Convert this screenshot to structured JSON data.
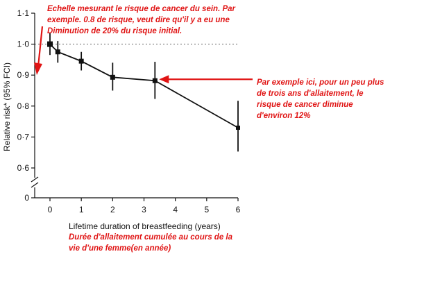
{
  "chart_data": {
    "type": "line",
    "title": "",
    "xlabel": "Lifetime duration of breastfeeding (years)",
    "ylabel": "Relative risk* (95% FCI)",
    "xlim": [
      0,
      6
    ],
    "ylim_break": {
      "lower": 0,
      "upper_range": [
        0.6,
        1.1
      ]
    },
    "x_ticks": [
      {
        "value": 0,
        "label": "0"
      },
      {
        "value": 1,
        "label": "1"
      },
      {
        "value": 2,
        "label": "2"
      },
      {
        "value": 3,
        "label": "3"
      },
      {
        "value": 4,
        "label": "4"
      },
      {
        "value": 5,
        "label": "5"
      },
      {
        "value": 6,
        "label": "6"
      }
    ],
    "y_ticks": [
      {
        "value": 0,
        "label": "0"
      },
      {
        "value": 0.6,
        "label": "0·6"
      },
      {
        "value": 0.7,
        "label": "0·7"
      },
      {
        "value": 0.8,
        "label": "0·8"
      },
      {
        "value": 0.9,
        "label": "0·9"
      },
      {
        "value": 1.0,
        "label": "1·0"
      },
      {
        "value": 1.1,
        "label": "1·1"
      }
    ],
    "reference_line": {
      "y": 1.0,
      "style": "dotted"
    },
    "series": [
      {
        "points": [
          {
            "x": 0,
            "y": 1.0,
            "lower": 0.965,
            "upper": 1.035
          },
          {
            "x": 0.25,
            "y": 0.975,
            "lower": 0.94,
            "upper": 1.01
          },
          {
            "x": 1,
            "y": 0.945,
            "lower": 0.915,
            "upper": 0.975
          },
          {
            "x": 2,
            "y": 0.893,
            "lower": 0.85,
            "upper": 0.94
          },
          {
            "x": 3.35,
            "y": 0.882,
            "lower": 0.823,
            "upper": 0.943
          },
          {
            "x": 6,
            "y": 0.73,
            "lower": 0.653,
            "upper": 0.817
          }
        ]
      }
    ],
    "grid": false,
    "legend": "none"
  },
  "annotations": {
    "y_axis_note": [
      "Echelle mesurant le risque de cancer du sein. Par",
      "exemple. 0.8 de risque, veut dire qu'il y a eu une",
      "Diminution de 20% du risque initial."
    ],
    "point_note": [
      "Par exemple ici, pour un peu plus",
      "de trois ans d'allaitement, le",
      "risque de cancer diminue",
      "d'environ 12%"
    ],
    "x_axis_note": [
      "Durée d'allaitement cumulée au cours de la",
      "vie d'une femme(en année)"
    ]
  },
  "colors": {
    "annotation": "#e01414",
    "data": "#111111",
    "reference": "#666666"
  }
}
